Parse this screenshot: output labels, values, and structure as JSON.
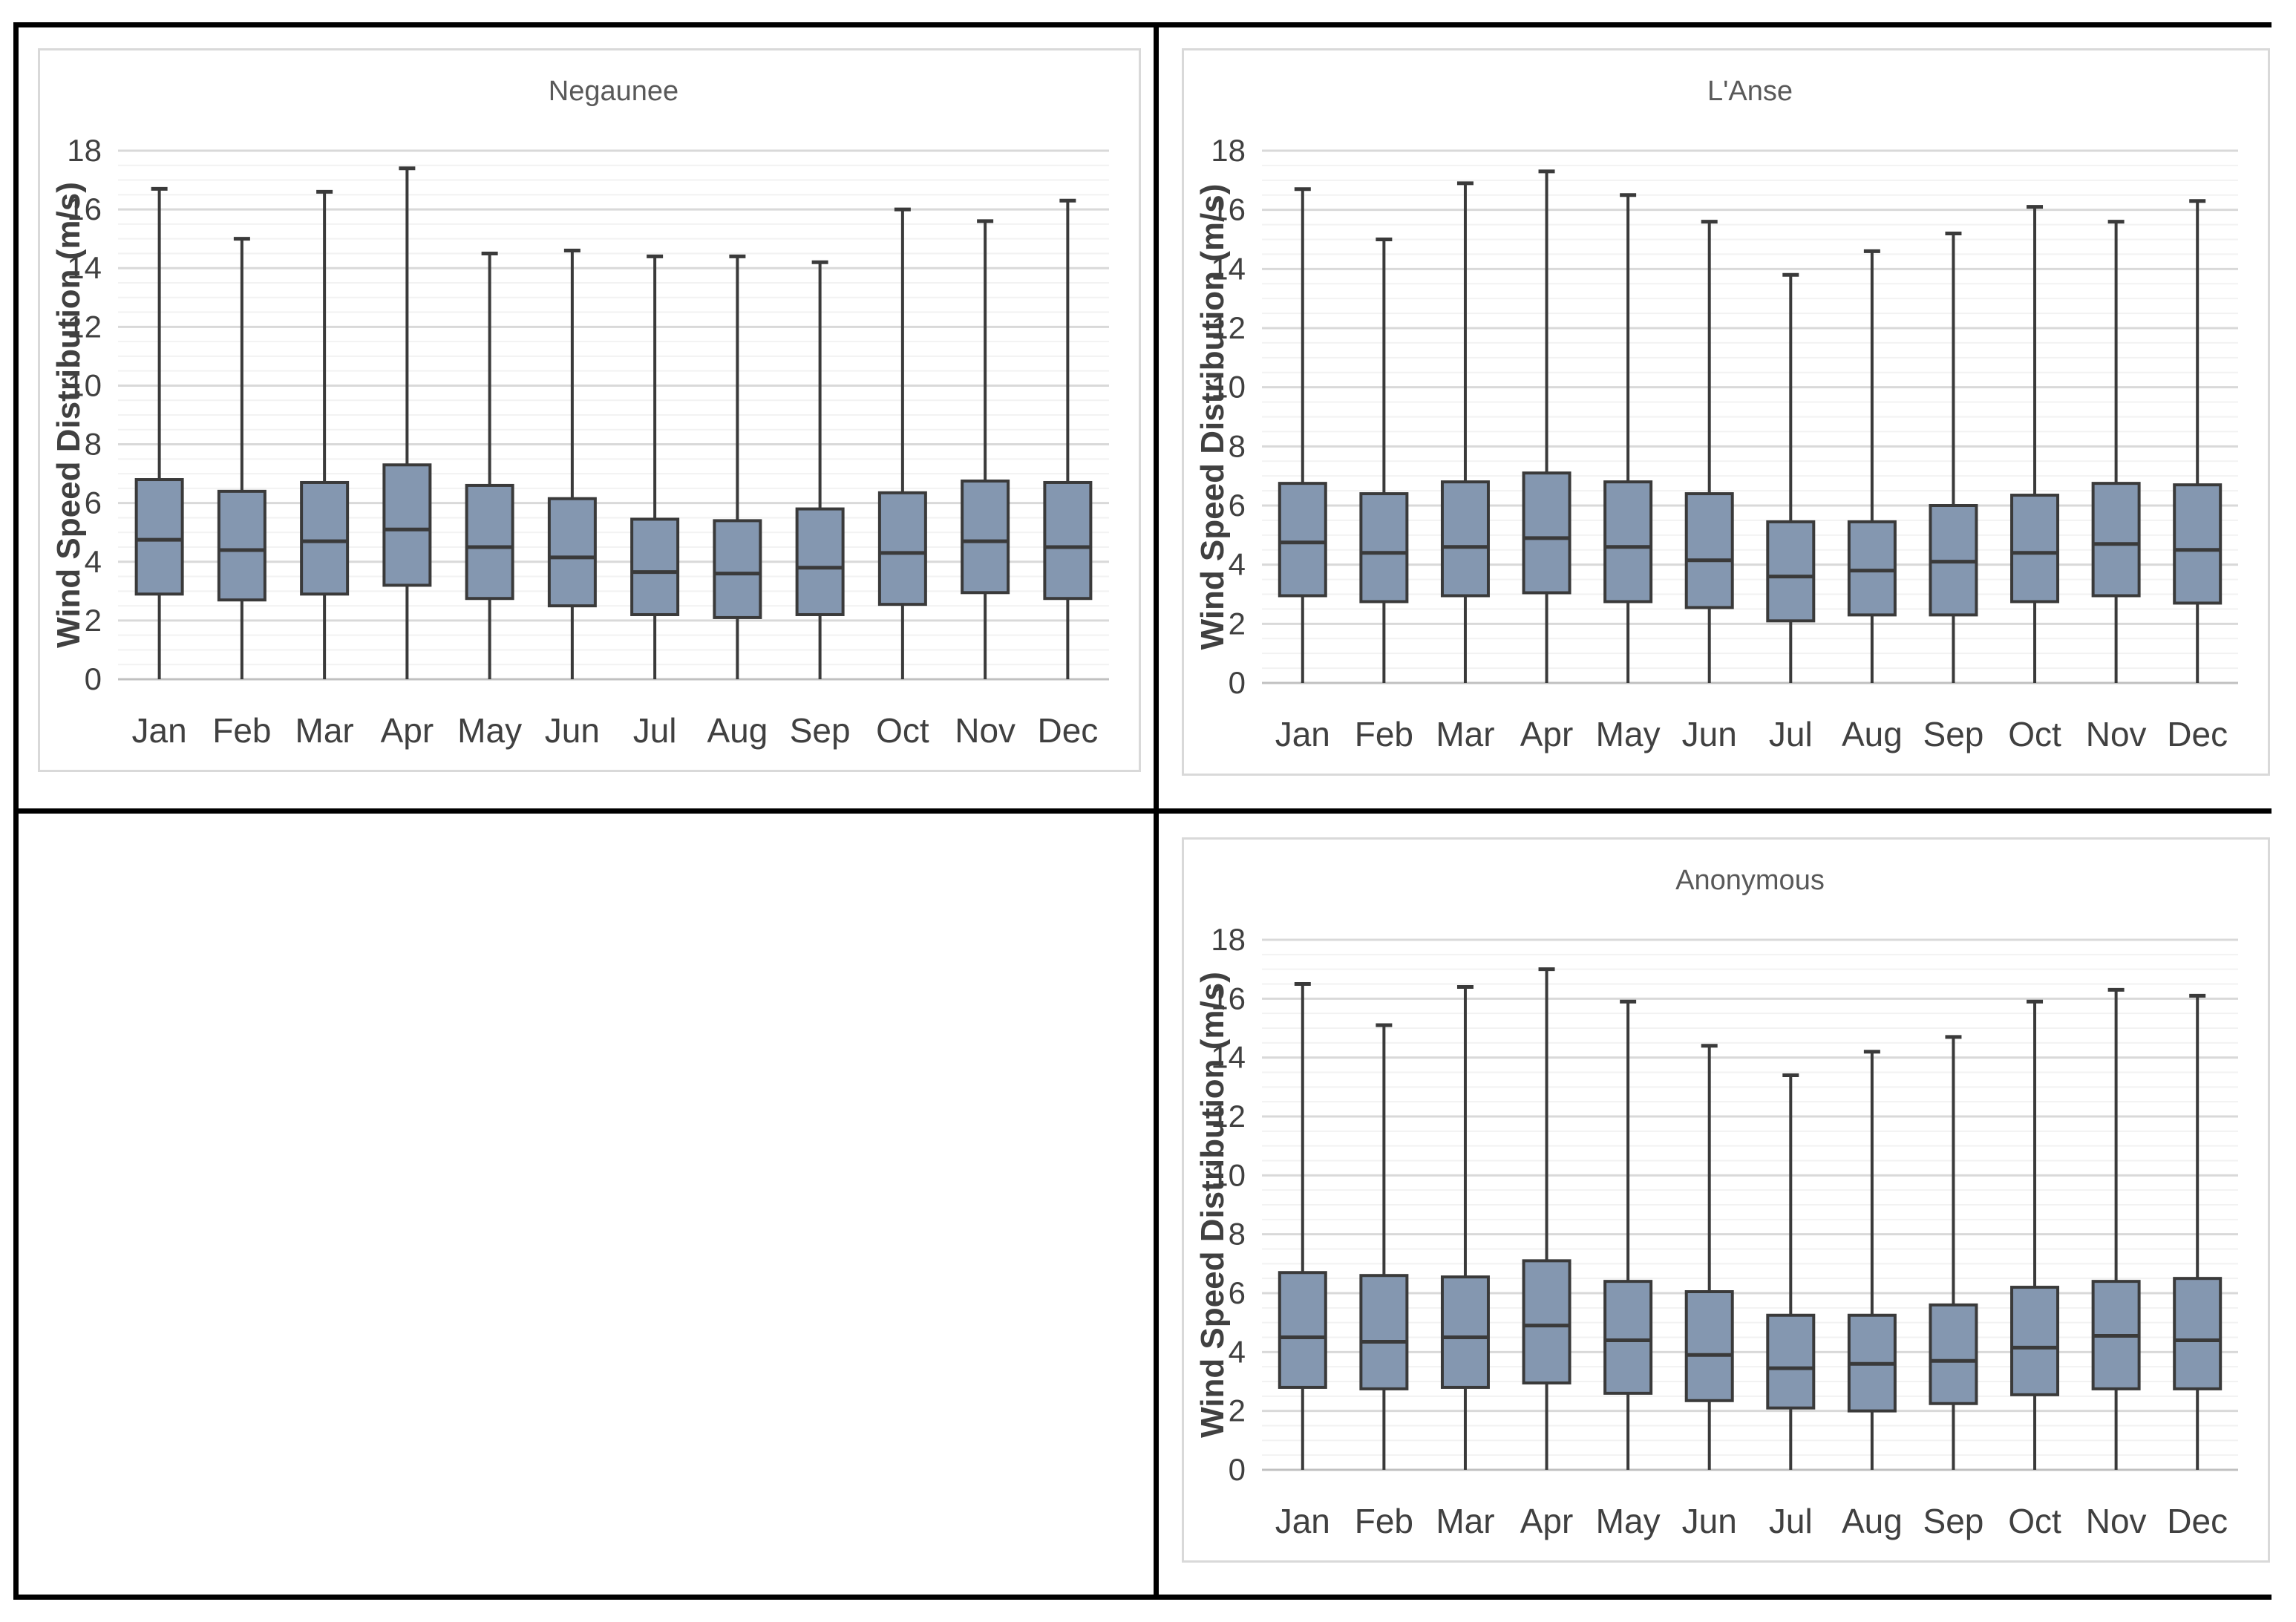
{
  "colors": {
    "box_fill": "#8497B0",
    "box_stroke": "#3a3a3a",
    "grid_major": "#d9d9d9",
    "grid_minor": "#f2f2f2",
    "axis_line": "#c0c0c0",
    "title_color": "#595959",
    "label_color": "#404040",
    "table_border": "#000000",
    "chart_border": "#d9d9d9"
  },
  "chart_data": [
    {
      "type": "boxplot",
      "title": "Negaunee",
      "ylabel": "Wind Speed Distribution (m/s)",
      "xlabel": "",
      "ylim": [
        0,
        18
      ],
      "y_tick_step": 2,
      "y_minor_step": 0.5,
      "grid": true,
      "legend": false,
      "categories": [
        "Jan",
        "Feb",
        "Mar",
        "Apr",
        "May",
        "Jun",
        "Jul",
        "Aug",
        "Sep",
        "Oct",
        "Nov",
        "Dec"
      ],
      "series": [
        {
          "month": "Jan",
          "min": 0,
          "q1": 2.9,
          "median": 4.75,
          "q3": 6.8,
          "max": 16.7
        },
        {
          "month": "Feb",
          "min": 0,
          "q1": 2.7,
          "median": 4.4,
          "q3": 6.4,
          "max": 15.0
        },
        {
          "month": "Mar",
          "min": 0,
          "q1": 2.9,
          "median": 4.7,
          "q3": 6.7,
          "max": 16.6
        },
        {
          "month": "Apr",
          "min": 0,
          "q1": 3.2,
          "median": 5.1,
          "q3": 7.3,
          "max": 17.4
        },
        {
          "month": "May",
          "min": 0,
          "q1": 2.75,
          "median": 4.5,
          "q3": 6.6,
          "max": 14.5
        },
        {
          "month": "Jun",
          "min": 0,
          "q1": 2.5,
          "median": 4.15,
          "q3": 6.15,
          "max": 14.6
        },
        {
          "month": "Jul",
          "min": 0,
          "q1": 2.2,
          "median": 3.65,
          "q3": 5.45,
          "max": 14.4
        },
        {
          "month": "Aug",
          "min": 0,
          "q1": 2.1,
          "median": 3.6,
          "q3": 5.4,
          "max": 14.4
        },
        {
          "month": "Sep",
          "min": 0,
          "q1": 2.2,
          "median": 3.8,
          "q3": 5.8,
          "max": 14.2
        },
        {
          "month": "Oct",
          "min": 0,
          "q1": 2.55,
          "median": 4.3,
          "q3": 6.35,
          "max": 16.0
        },
        {
          "month": "Nov",
          "min": 0,
          "q1": 2.95,
          "median": 4.7,
          "q3": 6.75,
          "max": 15.6
        },
        {
          "month": "Dec",
          "min": 0,
          "q1": 2.75,
          "median": 4.5,
          "q3": 6.7,
          "max": 16.3
        }
      ]
    },
    {
      "type": "boxplot",
      "title": "L'Anse",
      "ylabel": "Wind Speed Distribution (m/s)",
      "xlabel": "",
      "ylim": [
        0,
        18
      ],
      "y_tick_step": 2,
      "y_minor_step": 0.5,
      "grid": true,
      "legend": false,
      "categories": [
        "Jan",
        "Feb",
        "Mar",
        "Apr",
        "May",
        "Jun",
        "Jul",
        "Aug",
        "Sep",
        "Oct",
        "Nov",
        "Dec"
      ],
      "series": [
        {
          "month": "Jan",
          "min": 0,
          "q1": 2.95,
          "median": 4.75,
          "q3": 6.75,
          "max": 16.7
        },
        {
          "month": "Feb",
          "min": 0,
          "q1": 2.75,
          "median": 4.4,
          "q3": 6.4,
          "max": 15.0
        },
        {
          "month": "Mar",
          "min": 0,
          "q1": 2.95,
          "median": 4.6,
          "q3": 6.8,
          "max": 16.9
        },
        {
          "month": "Apr",
          "min": 0,
          "q1": 3.05,
          "median": 4.9,
          "q3": 7.1,
          "max": 17.3
        },
        {
          "month": "May",
          "min": 0,
          "q1": 2.75,
          "median": 4.6,
          "q3": 6.8,
          "max": 16.5
        },
        {
          "month": "Jun",
          "min": 0,
          "q1": 2.55,
          "median": 4.15,
          "q3": 6.4,
          "max": 15.6
        },
        {
          "month": "Jul",
          "min": 0,
          "q1": 2.1,
          "median": 3.6,
          "q3": 5.45,
          "max": 13.8
        },
        {
          "month": "Aug",
          "min": 0,
          "q1": 2.3,
          "median": 3.8,
          "q3": 5.45,
          "max": 14.6
        },
        {
          "month": "Sep",
          "min": 0,
          "q1": 2.3,
          "median": 4.1,
          "q3": 6.0,
          "max": 15.2
        },
        {
          "month": "Oct",
          "min": 0,
          "q1": 2.75,
          "median": 4.4,
          "q3": 6.35,
          "max": 16.1
        },
        {
          "month": "Nov",
          "min": 0,
          "q1": 2.95,
          "median": 4.7,
          "q3": 6.75,
          "max": 15.6
        },
        {
          "month": "Dec",
          "min": 0,
          "q1": 2.7,
          "median": 4.5,
          "q3": 6.7,
          "max": 16.3
        }
      ]
    },
    {
      "type": "boxplot",
      "title": "Anonymous",
      "ylabel": "Wind Speed Distribution (m/s)",
      "xlabel": "",
      "ylim": [
        0,
        18
      ],
      "y_tick_step": 2,
      "y_minor_step": 0.5,
      "grid": true,
      "legend": false,
      "categories": [
        "Jan",
        "Feb",
        "Mar",
        "Apr",
        "May",
        "Jun",
        "Jul",
        "Aug",
        "Sep",
        "Oct",
        "Nov",
        "Dec"
      ],
      "series": [
        {
          "month": "Jan",
          "min": 0,
          "q1": 2.8,
          "median": 4.5,
          "q3": 6.7,
          "max": 16.5
        },
        {
          "month": "Feb",
          "min": 0,
          "q1": 2.75,
          "median": 4.35,
          "q3": 6.6,
          "max": 15.1
        },
        {
          "month": "Mar",
          "min": 0,
          "q1": 2.8,
          "median": 4.5,
          "q3": 6.55,
          "max": 16.4
        },
        {
          "month": "Apr",
          "min": 0,
          "q1": 2.95,
          "median": 4.9,
          "q3": 7.1,
          "max": 17.0
        },
        {
          "month": "May",
          "min": 0,
          "q1": 2.6,
          "median": 4.4,
          "q3": 6.4,
          "max": 15.9
        },
        {
          "month": "Jun",
          "min": 0,
          "q1": 2.35,
          "median": 3.9,
          "q3": 6.05,
          "max": 14.4
        },
        {
          "month": "Jul",
          "min": 0,
          "q1": 2.1,
          "median": 3.45,
          "q3": 5.25,
          "max": 13.4
        },
        {
          "month": "Aug",
          "min": 0,
          "q1": 2.0,
          "median": 3.6,
          "q3": 5.25,
          "max": 14.2
        },
        {
          "month": "Sep",
          "min": 0,
          "q1": 2.25,
          "median": 3.7,
          "q3": 5.6,
          "max": 14.7
        },
        {
          "month": "Oct",
          "min": 0,
          "q1": 2.55,
          "median": 4.15,
          "q3": 6.2,
          "max": 15.9
        },
        {
          "month": "Nov",
          "min": 0,
          "q1": 2.75,
          "median": 4.55,
          "q3": 6.4,
          "max": 16.3
        },
        {
          "month": "Dec",
          "min": 0,
          "q1": 2.75,
          "median": 4.4,
          "q3": 6.5,
          "max": 16.1
        }
      ]
    }
  ]
}
